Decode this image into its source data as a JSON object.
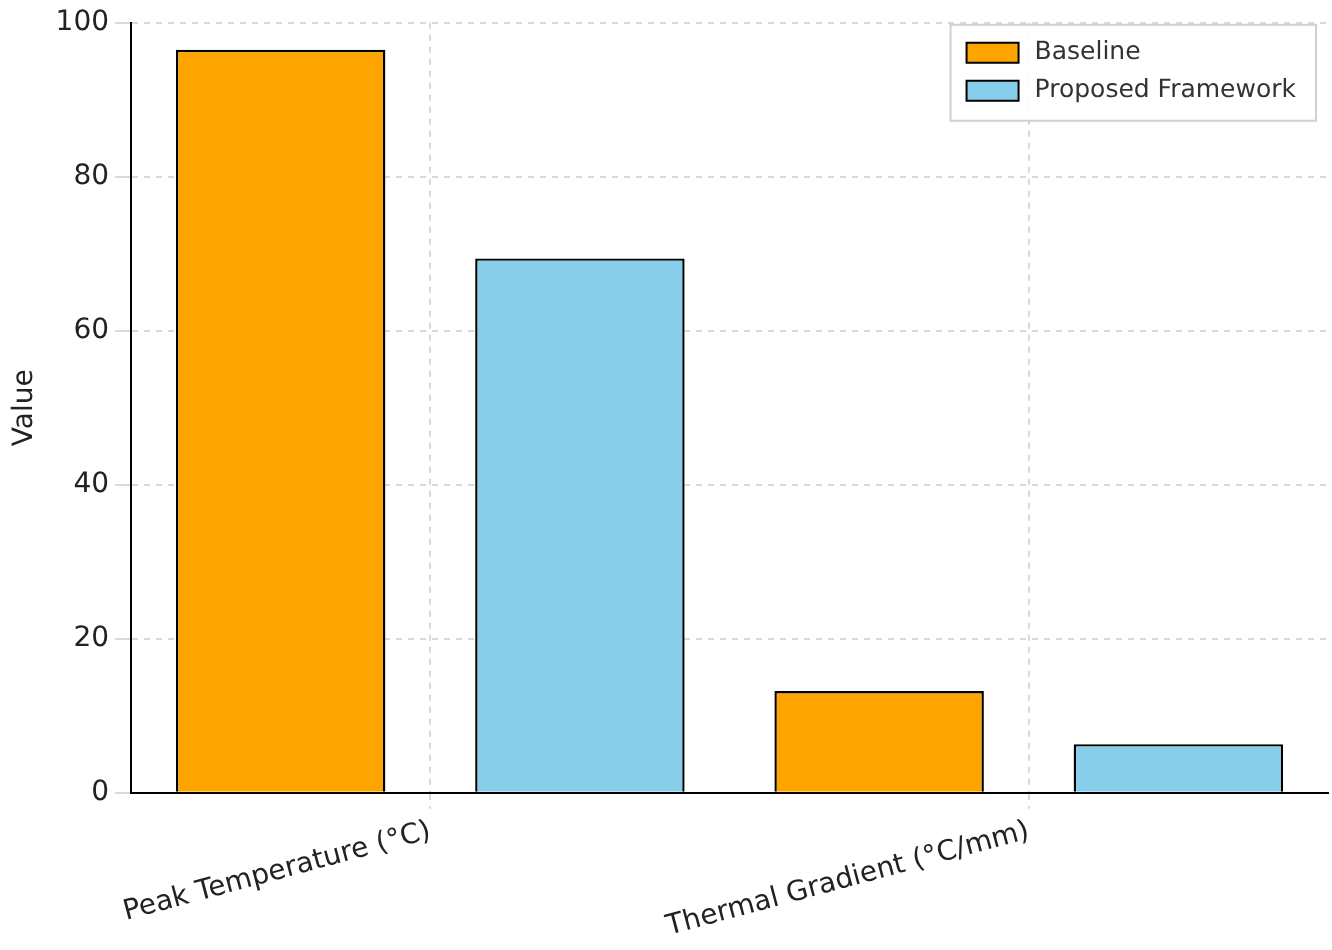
{
  "chart_data": {
    "type": "bar",
    "ylabel": "Value",
    "categories": [
      "Peak Temperature (°C)",
      "Thermal Gradient (°C/mm)"
    ],
    "series": [
      {
        "name": "Baseline",
        "color": "#ffa500",
        "values": [
          96.5,
          13.2
        ]
      },
      {
        "name": "Proposed Framework",
        "color": "#87ceeb",
        "values": [
          69.4,
          6.3
        ]
      }
    ],
    "ylim": [
      0,
      100
    ],
    "yticks": [
      0,
      20,
      40,
      60,
      80,
      100
    ],
    "grid": true,
    "legend": "top right"
  }
}
